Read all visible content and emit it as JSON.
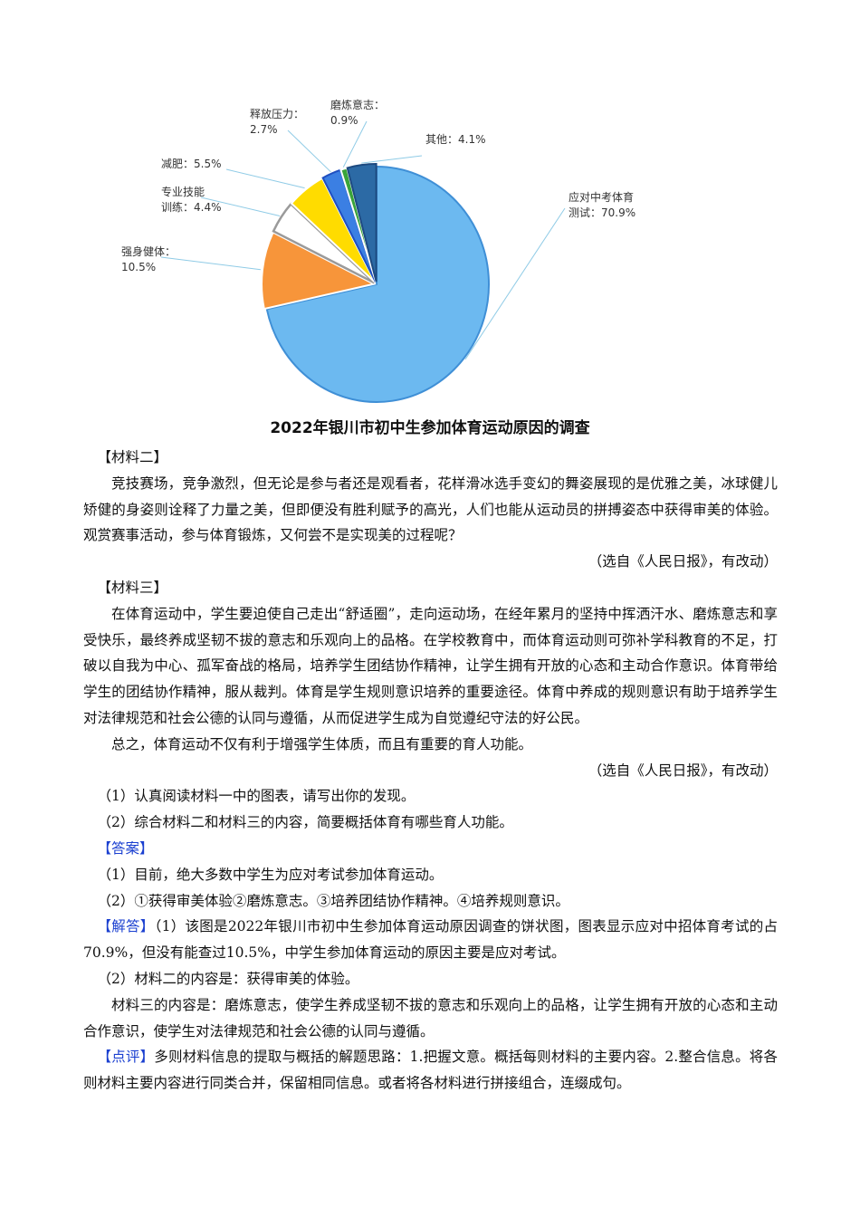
{
  "chart_data": {
    "type": "pie",
    "title": "2022年银川市初中生参加体育运动原因的调查",
    "slices": [
      {
        "label": "应对中考体育测试",
        "value": 70.9,
        "color": "#6cb9f0"
      },
      {
        "label": "强身健体",
        "value": 10.5,
        "color": "#f7953a"
      },
      {
        "label": "专业技能训练",
        "value": 4.4,
        "color": "#ffffff"
      },
      {
        "label": "减肥",
        "value": 5.5,
        "color": "#ffdc00"
      },
      {
        "label": "释放压力",
        "value": 2.7,
        "color": "#3b7fe3"
      },
      {
        "label": "磨炼意志",
        "value": 0.9,
        "color": "#3aa43a"
      },
      {
        "label": "其他",
        "value": 4.1,
        "color": "#2c6aa5"
      }
    ],
    "label_texts": [
      [
        "应对中考体育",
        "测试：70.9%"
      ],
      [
        "强身健体：",
        "10.5%"
      ],
      [
        "专业技能",
        "训练：4.4%"
      ],
      [
        "减肥：5.5%"
      ],
      [
        "释放压力：",
        "2.7%"
      ],
      [
        "磨炼意志：",
        "0.9%"
      ],
      [
        "其他：4.1%"
      ]
    ]
  },
  "doc": {
    "m2_head": "【材料二】",
    "m2_p": "竞技赛场，竞争激烈，但无论是参与者还是观看者，花样滑冰选手变幻的舞姿展现的是优雅之美，冰球健儿矫健的身姿则诠释了力量之美，但即便没有胜利赋予的高光，人们也能从运动员的拼搏姿态中获得审美的体验。观赏赛事活动，参与体育锻炼，又何尝不是实现美的过程呢？",
    "m2_src": "（选自《人民日报》，有改动）",
    "m3_head": "【材料三】",
    "m3_p1": "在体育运动中，学生要迫使自己走出“舒适圈”，走向运动场，在经年累月的坚持中挥洒汗水、磨炼意志和享受快乐，最终养成坚韧不拔的意志和乐观向上的品格。在学校教育中，而体育运动则可弥补学科教育的不足，打破以自我为中心、孤军奋战的格局，培养学生团结协作精神，让学生拥有开放的心态和主动合作意识。体育带给学生的团结协作精神，服从裁判。体育是学生规则意识培养的重要途径。体育中养成的规则意识有助于培养学生对法律规范和社会公德的认同与遵循，从而促进学生成为自觉遵纪守法的好公民。",
    "m3_p2": "总之，体育运动不仅有利于增强学生体质，而且有重要的育人功能。",
    "m3_src": "（选自《人民日报》，有改动）",
    "q1": "（1）认真阅读材料一中的图表，请写出你的发现。",
    "q2": "（2）综合材料二和材料三的内容，简要概括体育有哪些育人功能。",
    "ans_head": "【答案】",
    "a1": "（1）目前，绝大多数中学生为应对考试参加体育运动。",
    "a2": "（2）①获得审美体验②磨炼意志。③培养团结协作精神。④培养规则意识。",
    "jd_head": "【解答】",
    "jd1": "（1）该图是2022年银川市初中生参加体育运动原因调查的饼状图，图表显示应对中招体育考试的占70.9%，但没有能查过10.5%，中学生参加体育运动的原因主要是应对考试。",
    "jd2": "（2）材料二的内容是：获得审美的体验。",
    "jd3": "材料三的内容是：磨炼意志，使学生养成坚韧不拔的意志和乐观向上的品格，让学生拥有开放的心态和主动合作意识，使学生对法律规范和社会公德的认同与遵循。",
    "dp_head": "【点评】",
    "dp": "多则材料信息的提取与概括的解题思路：1.把握文意。概括每则材料的主要内容。2.整合信息。将各则材料主要内容进行同类合并，保留相同信息。或者将各材料进行拼接组合，连缀成句。"
  }
}
